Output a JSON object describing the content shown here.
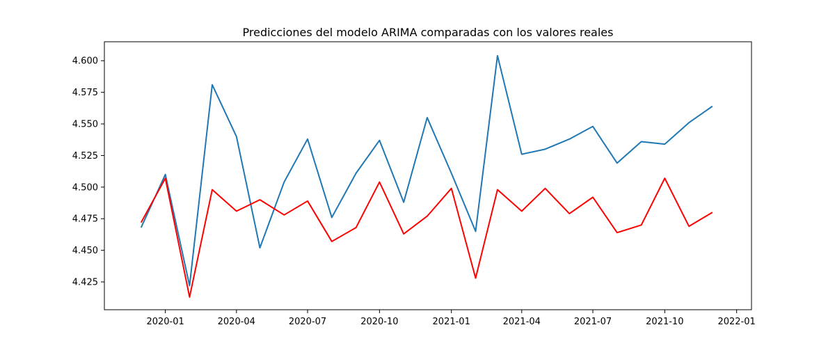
{
  "chart_data": {
    "type": "line",
    "title": "Predicciones del modelo ARIMA comparadas con los valores reales",
    "xlabel": "",
    "ylabel": "",
    "x": [
      "2019-12-01",
      "2020-01-01",
      "2020-02-01",
      "2020-03-01",
      "2020-04-01",
      "2020-05-01",
      "2020-06-01",
      "2020-07-01",
      "2020-08-01",
      "2020-09-01",
      "2020-10-01",
      "2020-11-01",
      "2020-12-01",
      "2021-01-01",
      "2021-02-01",
      "2021-03-01",
      "2021-04-01",
      "2021-05-01",
      "2021-06-01",
      "2021-07-01",
      "2021-08-01",
      "2021-09-01",
      "2021-10-01",
      "2021-11-01",
      "2021-12-01"
    ],
    "xlim": [
      "2019-10-15",
      "2022-01-20"
    ],
    "ylim": [
      4.403,
      4.615
    ],
    "x_ticks": [
      {
        "date": "2020-01-01",
        "label": "2020-01"
      },
      {
        "date": "2020-04-01",
        "label": "2020-04"
      },
      {
        "date": "2020-07-01",
        "label": "2020-07"
      },
      {
        "date": "2020-10-01",
        "label": "2020-10"
      },
      {
        "date": "2021-01-01",
        "label": "2021-01"
      },
      {
        "date": "2021-04-01",
        "label": "2021-04"
      },
      {
        "date": "2021-07-01",
        "label": "2021-07"
      },
      {
        "date": "2021-10-01",
        "label": "2021-10"
      },
      {
        "date": "2022-01-01",
        "label": "2022-01"
      }
    ],
    "y_ticks": [
      {
        "value": 4.425,
        "label": "4.425"
      },
      {
        "value": 4.45,
        "label": "4.450"
      },
      {
        "value": 4.475,
        "label": "4.475"
      },
      {
        "value": 4.5,
        "label": "4.500"
      },
      {
        "value": 4.525,
        "label": "4.525"
      },
      {
        "value": 4.55,
        "label": "4.550"
      },
      {
        "value": 4.575,
        "label": "4.575"
      },
      {
        "value": 4.6,
        "label": "4.600"
      }
    ],
    "grid": false,
    "legend": "none",
    "series": [
      {
        "color": "#1f77b4",
        "values": [
          4.468,
          4.51,
          4.422,
          4.581,
          4.54,
          4.452,
          4.504,
          4.538,
          4.476,
          4.511,
          4.537,
          4.488,
          4.555,
          4.511,
          4.465,
          4.604,
          4.526,
          4.53,
          4.538,
          4.548,
          4.519,
          4.536,
          4.534,
          4.551,
          4.564
        ]
      },
      {
        "color": "#ff0000",
        "values": [
          4.472,
          4.507,
          4.413,
          4.498,
          4.481,
          4.49,
          4.478,
          4.489,
          4.457,
          4.468,
          4.504,
          4.463,
          4.477,
          4.499,
          4.428,
          4.498,
          4.481,
          4.499,
          4.479,
          4.492,
          4.464,
          4.47,
          4.507,
          4.469,
          4.48
        ]
      }
    ]
  }
}
